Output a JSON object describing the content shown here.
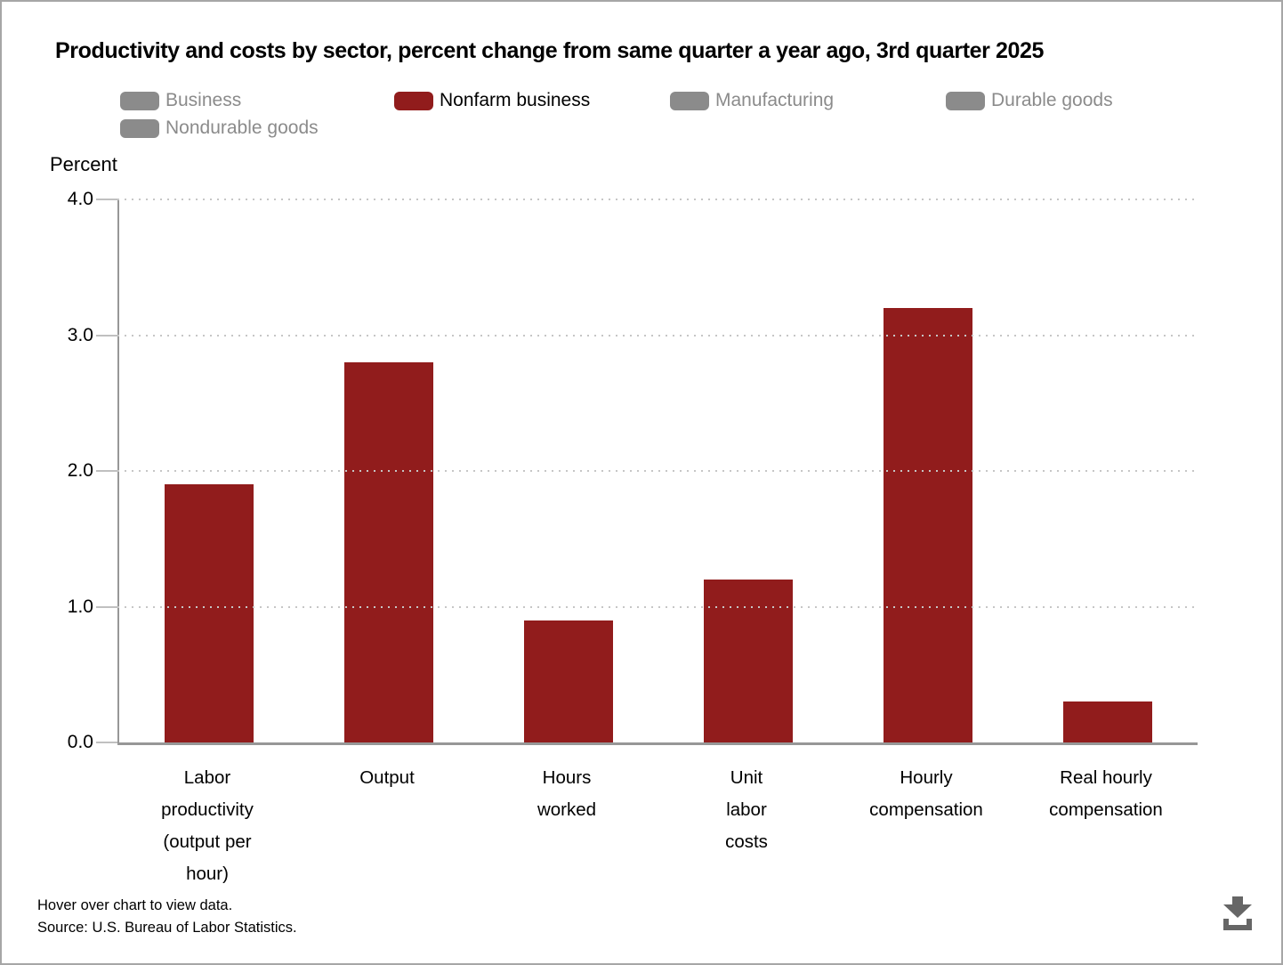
{
  "page": {
    "title": "Productivity and costs by sector, percent change from same quarter a year ago, 3rd quarter 2025",
    "y_axis_unit_label": "Percent",
    "footer": {
      "hover_note": "Hover over chart to view data.",
      "source": "Source: U.S. Bureau of Labor Statistics."
    }
  },
  "legend": {
    "position": "top",
    "items": [
      {
        "label": "Business",
        "active": false
      },
      {
        "label": "Nonfarm business",
        "active": true
      },
      {
        "label": "Manufacturing",
        "active": false
      },
      {
        "label": "Durable goods",
        "active": false
      },
      {
        "label": "Nondurable goods",
        "active": false
      }
    ]
  },
  "colors": {
    "series_red": "#911c1c",
    "legend_inactive_gray": "#8b8b8b",
    "axis_line": "#979797",
    "gridline": "#c6c6c6",
    "download_icon": "#666666"
  },
  "chart_data": {
    "type": "bar",
    "title": "Productivity and costs by sector, percent change from same quarter a year ago, 3rd quarter 2025",
    "categories": [
      "Labor productivity (output per hour)",
      "Output",
      "Hours worked",
      "Unit labor costs",
      "Hourly compensation",
      "Real hourly compensation"
    ],
    "category_label_lines": [
      [
        "Labor",
        "productivity",
        "(output per",
        "hour)"
      ],
      [
        "Output"
      ],
      [
        "Hours",
        "worked"
      ],
      [
        "Unit",
        "labor",
        "costs"
      ],
      [
        "Hourly",
        "compensation"
      ],
      [
        "Real hourly",
        "compensation"
      ]
    ],
    "series": [
      {
        "name": "Nonfarm business",
        "values": [
          1.9,
          2.8,
          0.9,
          1.2,
          3.2,
          0.3
        ]
      }
    ],
    "inactive_legend_entries": [
      "Business",
      "Manufacturing",
      "Durable goods",
      "Nondurable goods"
    ],
    "xlabel": "",
    "ylabel": "Percent",
    "ylim": [
      0,
      4
    ],
    "yticks": [
      "0.0",
      "1.0",
      "2.0",
      "3.0",
      "4.0"
    ],
    "grid": "horizontal dotted",
    "legend_position": "top"
  }
}
